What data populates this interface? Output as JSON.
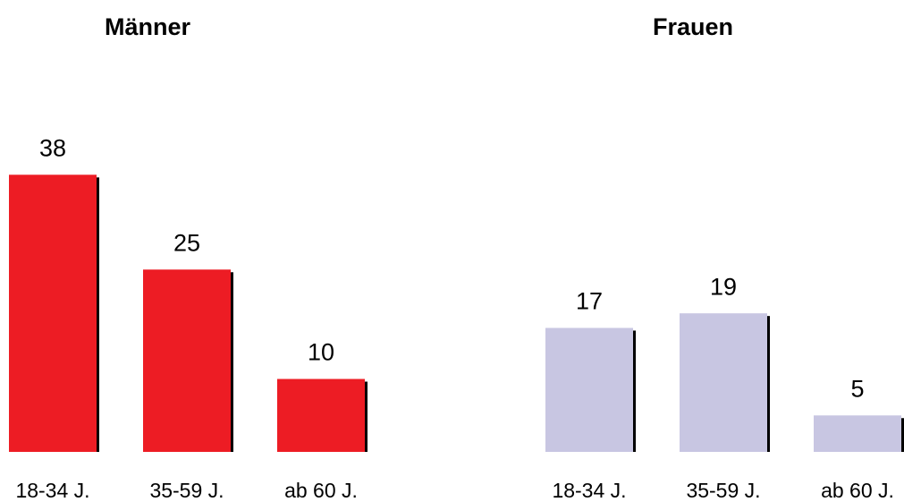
{
  "chart_data": [
    {
      "type": "bar",
      "title": "Männer",
      "categories": [
        "18-34 J.",
        "35-59 J.",
        "ab 60 J."
      ],
      "values": [
        38,
        25,
        10
      ],
      "color": "#ed1c24"
    },
    {
      "type": "bar",
      "title": "Frauen",
      "categories": [
        "18-34 J.",
        "35-59 J.",
        "ab 60 J."
      ],
      "values": [
        17,
        19,
        5
      ],
      "color": "#c8c6e2"
    }
  ]
}
